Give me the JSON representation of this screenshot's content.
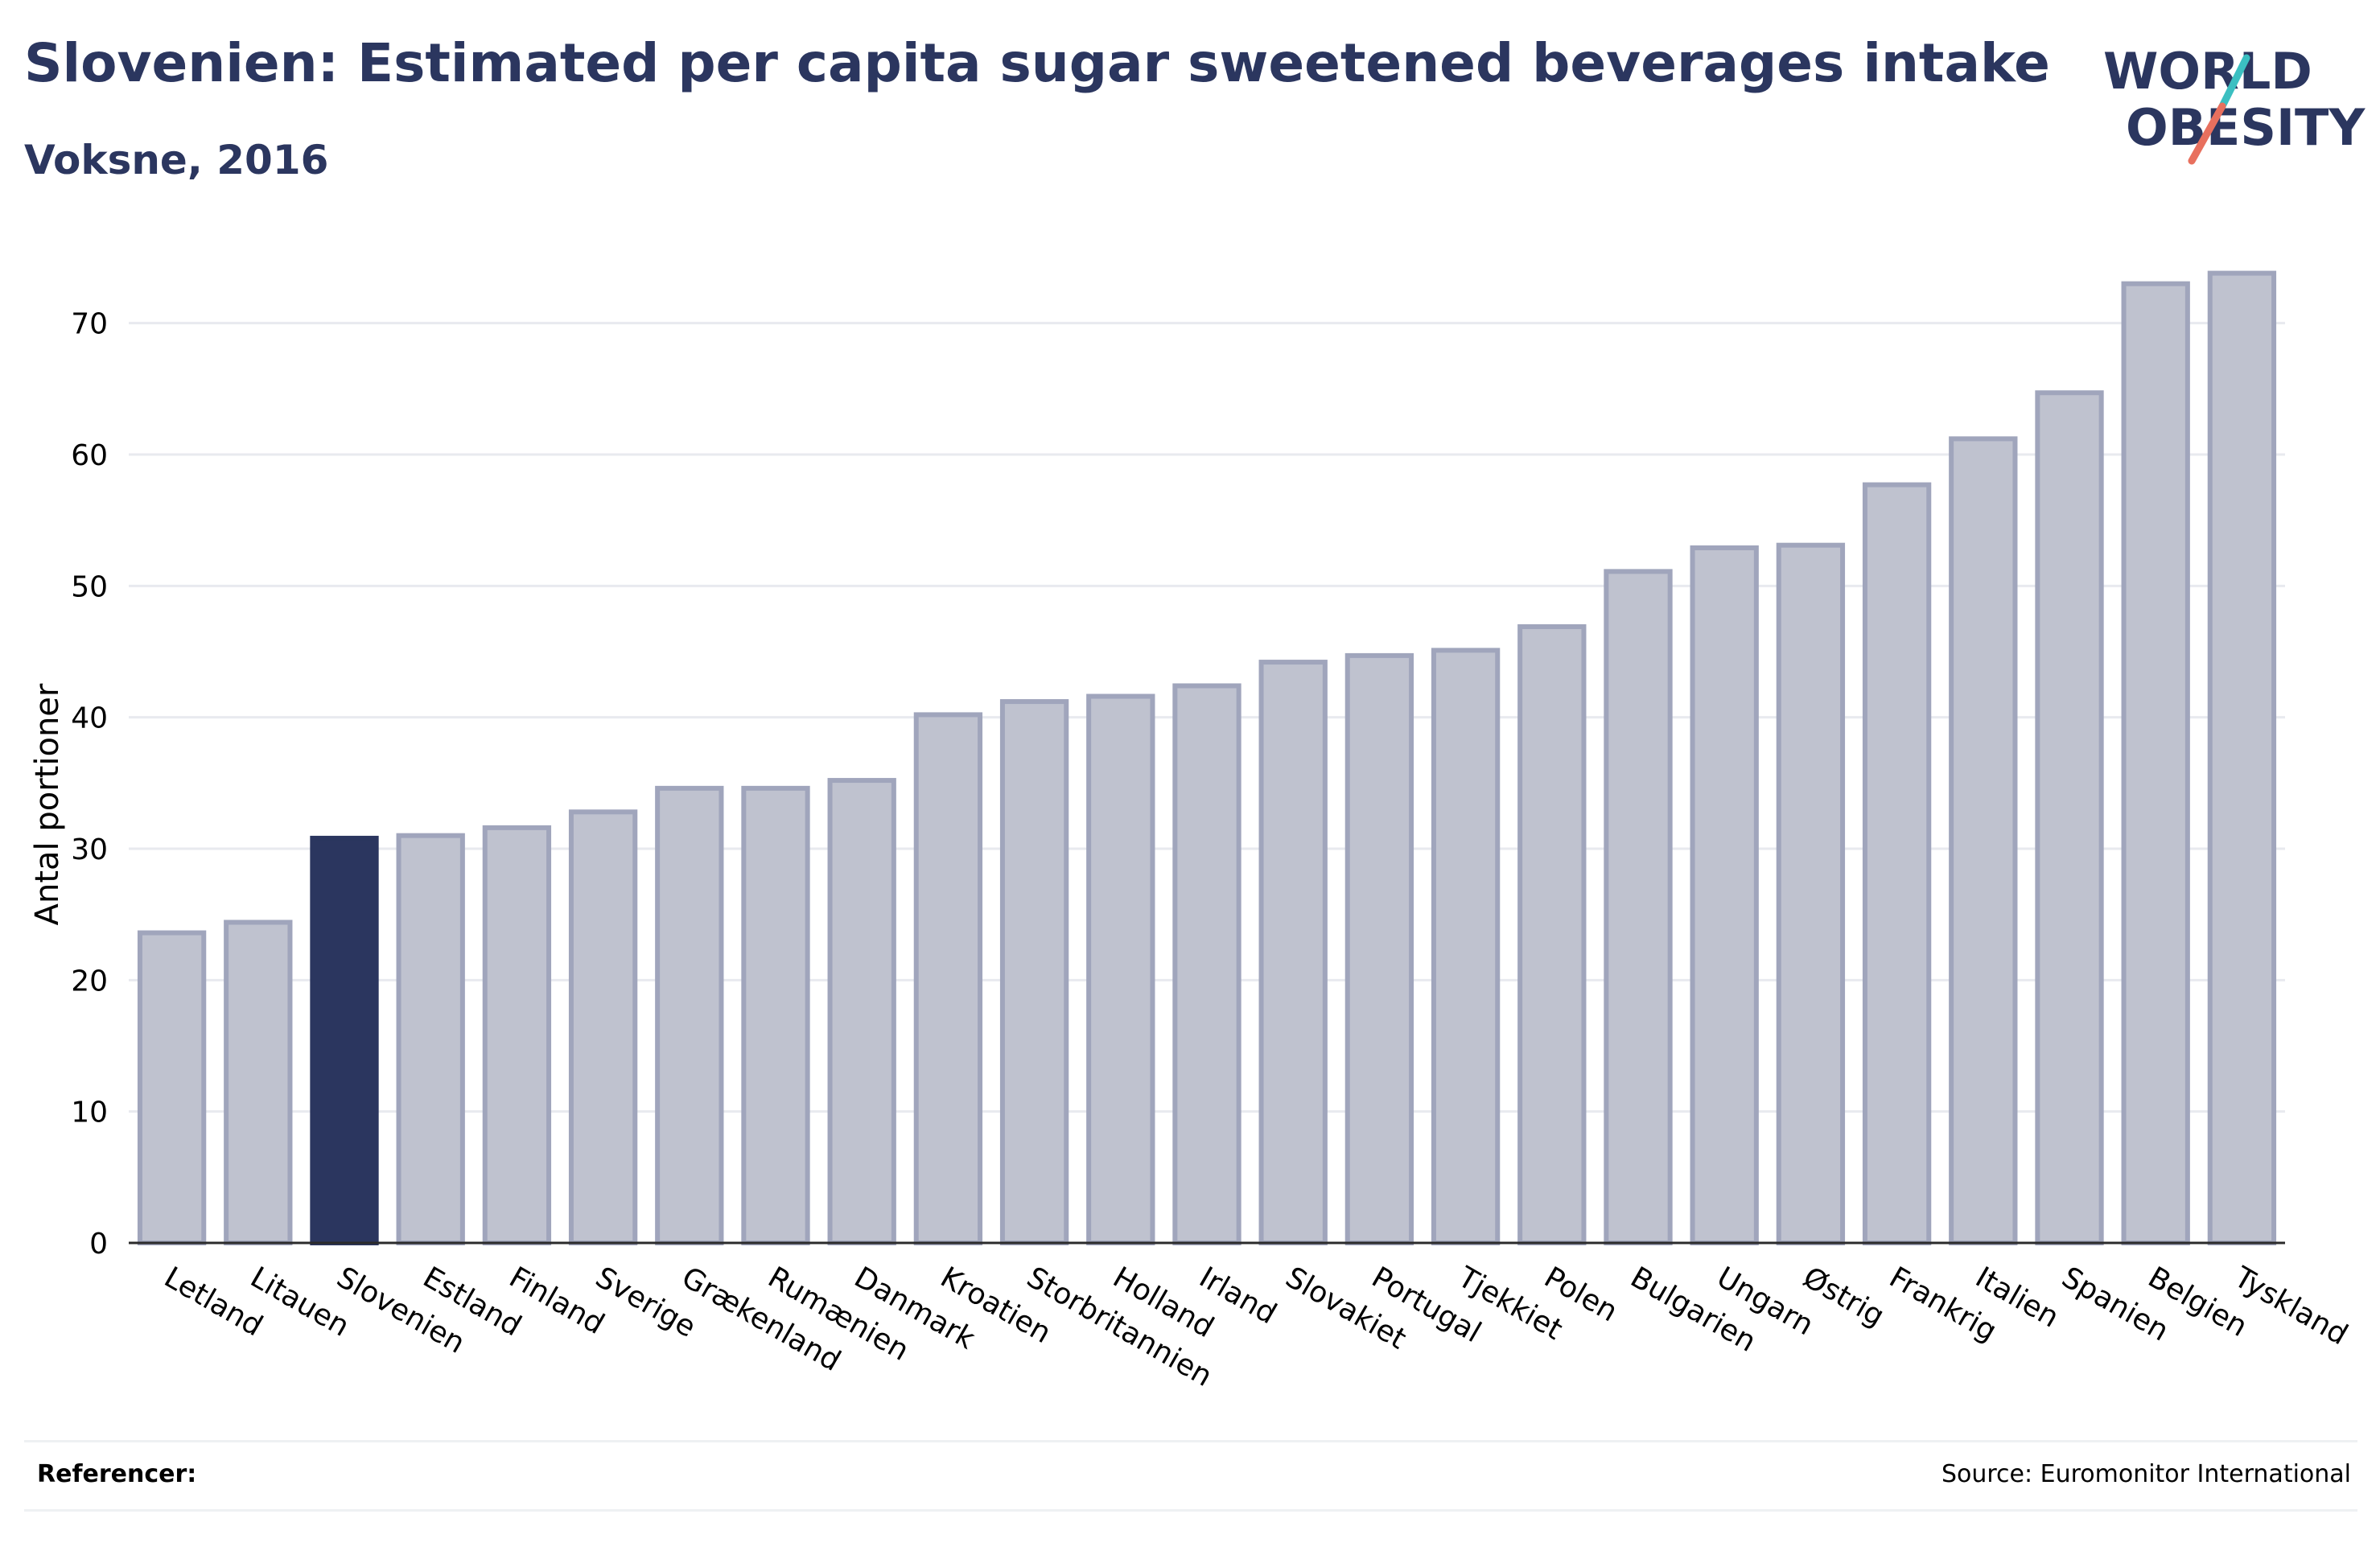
{
  "header": {
    "title": "Slovenien: Estimated per capita sugar sweetened beverages intake",
    "subtitle": "Voksne, 2016"
  },
  "logo": {
    "line1": "WORLD",
    "line2": "OBESITY",
    "accent_teal": "#3bbfc1",
    "accent_coral": "#e8705e"
  },
  "footer": {
    "references_label": "Referencer:",
    "source": "Source: Euromonitor International"
  },
  "colors": {
    "highlight_bar": "#2b365f",
    "bar_fill": "#bfc2cf",
    "bar_edge": "#a0a5bc",
    "gridline": "#e8eaef",
    "text": "#2b365f"
  },
  "chart_data": {
    "type": "bar",
    "ylabel": "Antal portioner",
    "ylim": [
      0,
      75
    ],
    "yticks": [
      0,
      10,
      20,
      30,
      40,
      50,
      60,
      70
    ],
    "grid": true,
    "highlight": "Slovenien",
    "categories": [
      "Letland",
      "Litauen",
      "Slovenien",
      "Estland",
      "Finland",
      "Sverige",
      "Grækenland",
      "Rumænien",
      "Danmark",
      "Kroatien",
      "Storbritannien",
      "Holland",
      "Irland",
      "Slovakiet",
      "Portugal",
      "Tjekkiet",
      "Polen",
      "Bulgarien",
      "Ungarn",
      "Østrig",
      "Frankrig",
      "Italien",
      "Spanien",
      "Belgien",
      "Tyskland"
    ],
    "values": [
      23.6,
      24.4,
      30.8,
      31.0,
      31.6,
      32.8,
      34.6,
      34.6,
      35.2,
      40.2,
      41.2,
      41.6,
      42.4,
      44.2,
      44.7,
      45.1,
      46.9,
      51.1,
      52.9,
      53.1,
      57.7,
      61.2,
      64.7,
      73.0,
      73.8
    ]
  }
}
